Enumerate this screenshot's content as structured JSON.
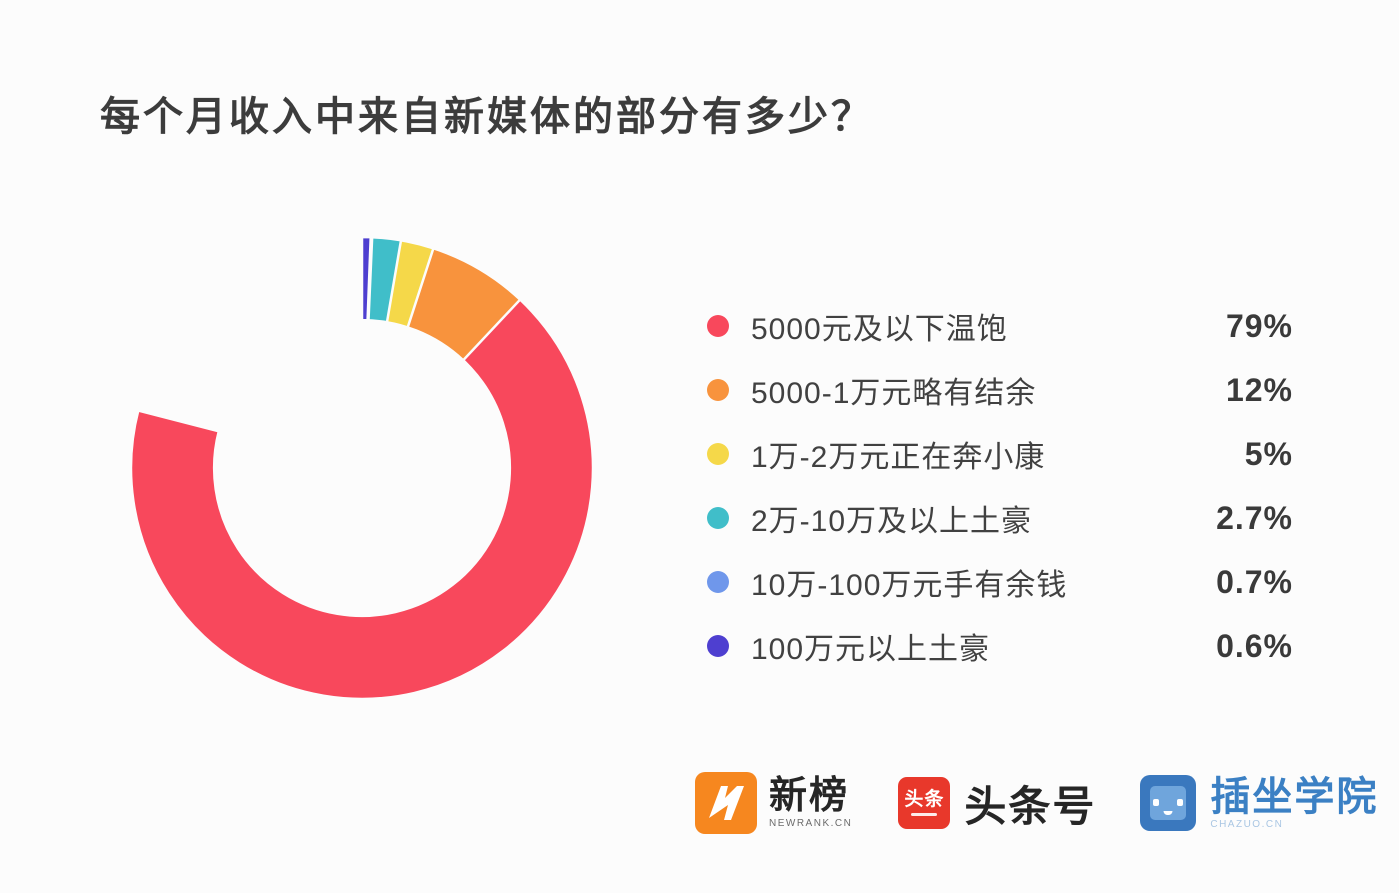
{
  "title": "每个月收入中来自新媒体的部分有多少？",
  "chart_data": {
    "type": "pie",
    "subtype": "donut",
    "title": "每个月收入中来自新媒体的部分有多少？",
    "labels": [
      "5000元及以下温饱",
      "5000-1万元略有结余",
      "1万-2万元正在奔小康",
      "2万-10万及以上土豪",
      "10万-100万元手有余钱",
      "100万元以上土豪"
    ],
    "values": [
      79,
      12,
      5,
      2.7,
      0.7,
      0.6
    ],
    "display_values": [
      "79%",
      "12%",
      "5%",
      "2.7%",
      "0.7%",
      "0.6%"
    ],
    "colors": [
      "#F8485C",
      "#F8933D",
      "#F5D849",
      "#40BEC9",
      "#6F97EB",
      "#4E3FD0"
    ],
    "legend_position": "right",
    "start_angle_deg": 0,
    "direction": "clockwise",
    "inner_radius_ratio": 0.64,
    "slice_gap_color": "#FCFCFC"
  },
  "footer": {
    "logos": [
      {
        "name": "newrank",
        "text": "新榜",
        "subtext": "NEWRANK.CN",
        "icon": "newrank-lightning-n-icon",
        "icon_color": "#F6871F"
      },
      {
        "name": "toutiao",
        "icon_text": "头条",
        "text": "头条号",
        "icon": "toutiao-icon",
        "icon_color": "#E8382B"
      },
      {
        "name": "chazuo",
        "text": "插坐学院",
        "subtext": "CHAZUO.CN",
        "icon": "chazuo-robot-face-icon",
        "icon_color": "#3A78BE",
        "inner_color": "#6FA5DC",
        "text_color": "#3B80C4"
      }
    ]
  }
}
